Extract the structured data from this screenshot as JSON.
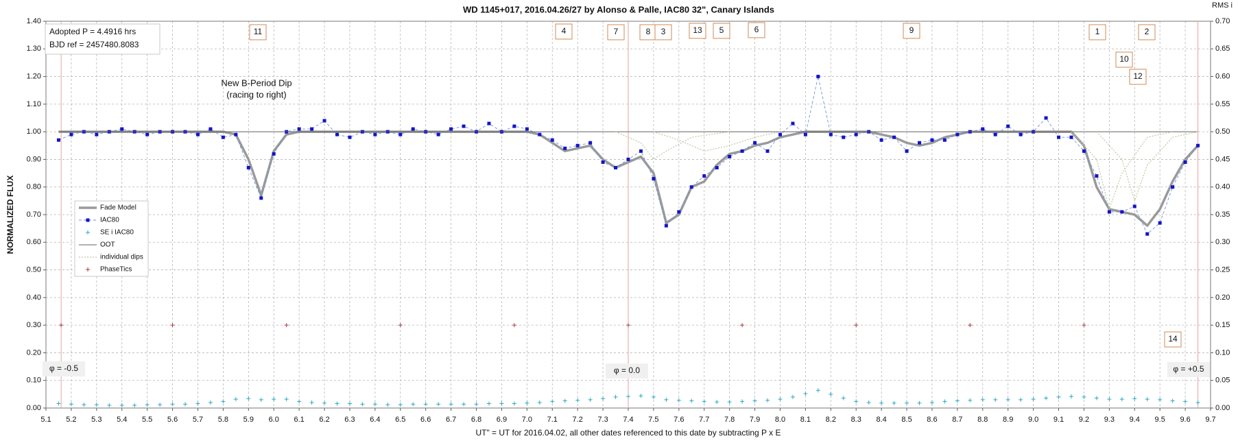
{
  "chart_data": {
    "type": "line",
    "title": "WD 1145+017,  2016.04.26/27  by Alonso  & Palle, IAC80 32\", Canary Islands",
    "x_label": "UT\" = UT for 2016.04.02, all other dates referenced to this date by subtracting P x E",
    "y_label": "NORMALIZED FLUX",
    "y2_label": "RMS i",
    "xlim": [
      5.1,
      9.7
    ],
    "xticks": [
      5.1,
      5.2,
      5.3,
      5.4,
      5.5,
      5.6,
      5.7,
      5.8,
      5.9,
      {
        "value": 6,
        "label": "6.0"
      },
      6.1,
      6.2,
      6.3,
      6.4,
      6.5,
      6.6,
      6.7,
      6.8,
      6.9,
      {
        "value": 7,
        "label": "7.0"
      },
      7.1,
      7.2,
      7.3,
      7.4,
      7.5,
      7.6,
      7.7,
      7.8,
      7.9,
      {
        "value": 8,
        "label": "8.0"
      },
      8.1,
      8.2,
      8.3,
      8.4,
      8.5,
      8.6,
      8.7,
      8.8,
      8.9,
      {
        "value": 9,
        "label": "9.0"
      },
      9.1,
      9.2,
      9.3,
      9.4,
      9.5,
      9.6,
      9.7
    ],
    "ylim": [
      0,
      1.4
    ],
    "yticks": [
      {
        "value": 0,
        "label": "0.00"
      },
      {
        "value": 0.1,
        "label": "0.10"
      },
      {
        "value": 0.2,
        "label": "0.20"
      },
      {
        "value": 0.3,
        "label": "0.30"
      },
      {
        "value": 0.4,
        "label": "0.40"
      },
      {
        "value": 0.5,
        "label": "0.50"
      },
      {
        "value": 0.6,
        "label": "0.60"
      },
      {
        "value": 0.7,
        "label": "0.70"
      },
      {
        "value": 0.8,
        "label": "0.80"
      },
      {
        "value": 0.9,
        "label": "0.90"
      },
      {
        "value": 1,
        "label": "1.00"
      },
      {
        "value": 1.1,
        "label": "1.10"
      },
      {
        "value": 1.2,
        "label": "1.20"
      },
      {
        "value": 1.3,
        "label": "1.30"
      },
      {
        "value": 1.4,
        "label": "1.40"
      }
    ],
    "y2lim": [
      0,
      0.7
    ],
    "y2ticks": [
      {
        "value": 0,
        "label": "0.00"
      },
      0.05,
      {
        "value": 0.1,
        "label": "0.10"
      },
      0.15,
      {
        "value": 0.2,
        "label": "0.20"
      },
      0.25,
      {
        "value": 0.3,
        "label": "0.30"
      },
      0.35,
      {
        "value": 0.4,
        "label": "0.40"
      },
      0.45,
      {
        "value": 0.5,
        "label": "0.50"
      },
      0.55,
      {
        "value": 0.6,
        "label": "0.60"
      },
      0.65,
      {
        "value": 0.7,
        "label": "0.70"
      }
    ],
    "grid": true,
    "legend": "left",
    "series": [
      {
        "name": "Fade Model",
        "color": "#9a9a9a",
        "line": "solid",
        "marker": "none",
        "x": [
          5.15,
          5.2,
          5.25,
          5.3,
          5.35,
          5.4,
          5.45,
          5.5,
          5.55,
          5.6,
          5.65,
          5.7,
          5.75,
          5.8,
          5.85,
          5.9,
          5.95,
          6,
          6.05,
          6.1,
          6.15,
          6.2,
          6.25,
          6.3,
          6.35,
          6.4,
          6.45,
          6.5,
          6.55,
          6.6,
          6.65,
          6.7,
          6.75,
          6.8,
          6.85,
          6.9,
          6.95,
          7,
          7.05,
          7.1,
          7.15,
          7.2,
          7.25,
          7.3,
          7.35,
          7.4,
          7.45,
          7.5,
          7.55,
          7.6,
          7.65,
          7.7,
          7.75,
          7.8,
          7.85,
          7.9,
          7.95,
          8,
          8.05,
          8.1,
          8.15,
          8.2,
          8.25,
          8.3,
          8.35,
          8.4,
          8.45,
          8.5,
          8.55,
          8.6,
          8.65,
          8.7,
          8.75,
          8.8,
          8.85,
          8.9,
          8.95,
          9,
          9.05,
          9.1,
          9.15,
          9.2,
          9.25,
          9.3,
          9.35,
          9.4,
          9.45,
          9.5,
          9.55,
          9.6,
          9.65
        ],
        "values": [
          1,
          1,
          1,
          1,
          1,
          1,
          1,
          1,
          1,
          1,
          1,
          1,
          1,
          1,
          0.99,
          0.9,
          0.77,
          0.93,
          0.99,
          1,
          1,
          1,
          1,
          1,
          1,
          1,
          1,
          1,
          1,
          1,
          1,
          1,
          1,
          1,
          1,
          1,
          1,
          1,
          0.99,
          0.96,
          0.93,
          0.94,
          0.95,
          0.9,
          0.87,
          0.89,
          0.91,
          0.85,
          0.67,
          0.7,
          0.8,
          0.82,
          0.88,
          0.92,
          0.93,
          0.95,
          0.96,
          0.98,
          0.99,
          1,
          1,
          1,
          1,
          1,
          1,
          0.99,
          0.98,
          0.96,
          0.95,
          0.96,
          0.98,
          0.99,
          1,
          1,
          1,
          1,
          1,
          1,
          1,
          1,
          1,
          0.95,
          0.8,
          0.72,
          0.71,
          0.7,
          0.66,
          0.72,
          0.82,
          0.9,
          0.95
        ]
      },
      {
        "name": "IAC80",
        "color": "#1414c8",
        "line": "dashed",
        "marker": "square",
        "x": [
          5.15,
          5.2,
          5.25,
          5.3,
          5.35,
          5.4,
          5.45,
          5.5,
          5.55,
          5.6,
          5.65,
          5.7,
          5.75,
          5.8,
          5.85,
          5.9,
          5.95,
          6,
          6.05,
          6.1,
          6.15,
          6.2,
          6.25,
          6.3,
          6.35,
          6.4,
          6.45,
          6.5,
          6.55,
          6.6,
          6.65,
          6.7,
          6.75,
          6.8,
          6.85,
          6.9,
          6.95,
          7,
          7.05,
          7.1,
          7.15,
          7.2,
          7.25,
          7.3,
          7.35,
          7.4,
          7.45,
          7.5,
          7.55,
          7.6,
          7.65,
          7.7,
          7.75,
          7.8,
          7.85,
          7.9,
          7.95,
          8,
          8.05,
          8.1,
          8.15,
          8.2,
          8.25,
          8.3,
          8.35,
          8.4,
          8.45,
          8.5,
          8.55,
          8.6,
          8.65,
          8.7,
          8.75,
          8.8,
          8.85,
          8.9,
          8.95,
          9,
          9.05,
          9.1,
          9.15,
          9.2,
          9.25,
          9.3,
          9.35,
          9.4,
          9.45,
          9.5,
          9.55,
          9.6,
          9.65
        ],
        "values": [
          0.97,
          0.99,
          1,
          0.99,
          1,
          1.01,
          1,
          0.99,
          1,
          1,
          1,
          0.99,
          1.01,
          0.98,
          0.99,
          0.87,
          0.76,
          0.92,
          1,
          1.01,
          1.01,
          1.04,
          0.99,
          0.98,
          1,
          0.99,
          1,
          0.99,
          1.01,
          1,
          0.99,
          1.01,
          1.02,
          1,
          1.03,
          1,
          1.02,
          1.01,
          0.99,
          0.97,
          0.94,
          0.95,
          0.96,
          0.89,
          0.87,
          0.9,
          0.93,
          0.83,
          0.66,
          0.71,
          0.8,
          0.84,
          0.87,
          0.91,
          0.93,
          0.96,
          0.93,
          0.99,
          1.03,
          0.99,
          1.2,
          0.99,
          0.98,
          0.99,
          1,
          0.97,
          0.98,
          0.93,
          0.96,
          0.97,
          0.97,
          0.99,
          1,
          1.01,
          0.99,
          1.02,
          0.99,
          1,
          1.05,
          0.98,
          0.98,
          0.93,
          0.84,
          0.71,
          0.71,
          0.73,
          0.63,
          0.67,
          0.8,
          0.89,
          0.95
        ]
      },
      {
        "name": "SE i IAC80",
        "color": "#2aa8c8",
        "line": "none",
        "marker": "plus",
        "axis": "y2",
        "x": [
          5.15,
          5.2,
          5.25,
          5.3,
          5.35,
          5.4,
          5.45,
          5.5,
          5.55,
          5.6,
          5.65,
          5.7,
          5.75,
          5.8,
          5.85,
          5.9,
          5.95,
          6,
          6.05,
          6.1,
          6.15,
          6.2,
          6.25,
          6.3,
          6.35,
          6.4,
          6.45,
          6.5,
          6.55,
          6.6,
          6.65,
          6.7,
          6.75,
          6.8,
          6.85,
          6.9,
          6.95,
          7,
          7.05,
          7.1,
          7.15,
          7.2,
          7.25,
          7.3,
          7.35,
          7.4,
          7.45,
          7.5,
          7.55,
          7.6,
          7.65,
          7.7,
          7.75,
          7.8,
          7.85,
          7.9,
          7.95,
          8,
          8.05,
          8.1,
          8.15,
          8.2,
          8.25,
          8.3,
          8.35,
          8.4,
          8.45,
          8.5,
          8.55,
          8.6,
          8.65,
          8.7,
          8.75,
          8.8,
          8.85,
          8.9,
          8.95,
          9,
          9.05,
          9.1,
          9.15,
          9.2,
          9.25,
          9.3,
          9.35,
          9.4,
          9.45,
          9.5,
          9.55,
          9.6,
          9.65
        ],
        "values": [
          0.008,
          0.007,
          0.006,
          0.006,
          0.005,
          0.005,
          0.005,
          0.006,
          0.006,
          0.007,
          0.007,
          0.008,
          0.01,
          0.012,
          0.016,
          0.017,
          0.015,
          0.016,
          0.016,
          0.012,
          0.01,
          0.009,
          0.008,
          0.008,
          0.007,
          0.007,
          0.006,
          0.006,
          0.007,
          0.007,
          0.007,
          0.007,
          0.007,
          0.007,
          0.008,
          0.008,
          0.008,
          0.009,
          0.01,
          0.012,
          0.013,
          0.014,
          0.015,
          0.017,
          0.02,
          0.021,
          0.022,
          0.02,
          0.015,
          0.014,
          0.013,
          0.012,
          0.011,
          0.011,
          0.012,
          0.013,
          0.014,
          0.016,
          0.02,
          0.026,
          0.032,
          0.025,
          0.018,
          0.012,
          0.01,
          0.009,
          0.009,
          0.009,
          0.009,
          0.01,
          0.012,
          0.013,
          0.014,
          0.015,
          0.015,
          0.015,
          0.015,
          0.016,
          0.018,
          0.02,
          0.021,
          0.02,
          0.018,
          0.016,
          0.016,
          0.017,
          0.016,
          0.015,
          0.013,
          0.012,
          0.01
        ]
      },
      {
        "name": "OOT",
        "color": "#606060",
        "line": "thin",
        "marker": "none",
        "x": [
          5.15,
          9.65
        ],
        "values": [
          1,
          1
        ]
      },
      {
        "name": "individual dips",
        "color": "#bcc8a0",
        "line": "dotted",
        "marker": "none",
        "curves": [
          {
            "x": [
              7.35,
              7.45,
              7.5,
              7.55,
              7.65,
              7.8
            ],
            "values": [
              1,
              0.96,
              0.9,
              0.93,
              0.98,
              1
            ]
          },
          {
            "x": [
              7.5,
              7.6,
              7.7,
              7.8,
              7.9,
              8.0
            ],
            "values": [
              1,
              0.97,
              0.93,
              0.95,
              0.98,
              1
            ]
          },
          {
            "x": [
              9.15,
              9.25,
              9.3,
              9.35,
              9.45,
              9.55
            ],
            "values": [
              1,
              0.9,
              0.72,
              0.85,
              0.98,
              1
            ]
          },
          {
            "x": [
              9.25,
              9.35,
              9.4,
              9.45,
              9.55,
              9.65
            ],
            "values": [
              1,
              0.9,
              0.75,
              0.88,
              0.98,
              1
            ]
          }
        ]
      },
      {
        "name": "PhaseTics",
        "color": "#a03c3c",
        "line": "none",
        "marker": "plus",
        "x": [
          5.16,
          5.6,
          6.05,
          6.5,
          6.95,
          7.4,
          7.85,
          8.3,
          8.75,
          9.2
        ],
        "values": [
          0.3,
          0.3,
          0.3,
          0.3,
          0.3,
          0.3,
          0.3,
          0.3,
          0.3,
          0.3
        ]
      }
    ],
    "reference_lines": {
      "color": "#e8a0a0",
      "x": [
        5.16,
        7.4,
        9.65
      ]
    },
    "info": [
      "Adopted P = 4.4916 hrs",
      "BJD ref = 2457480.8083"
    ],
    "note": [
      "New B-Period Dip",
      "(racing to right)"
    ],
    "phase_labels": [
      "φ = -0.5",
      "φ = 0.0",
      "φ = +0.5"
    ],
    "dip_labels": [
      "11",
      "4",
      "7",
      "8",
      "3",
      "13",
      "5",
      "6",
      "9",
      "1",
      "2",
      "10",
      "12",
      "14"
    ]
  }
}
